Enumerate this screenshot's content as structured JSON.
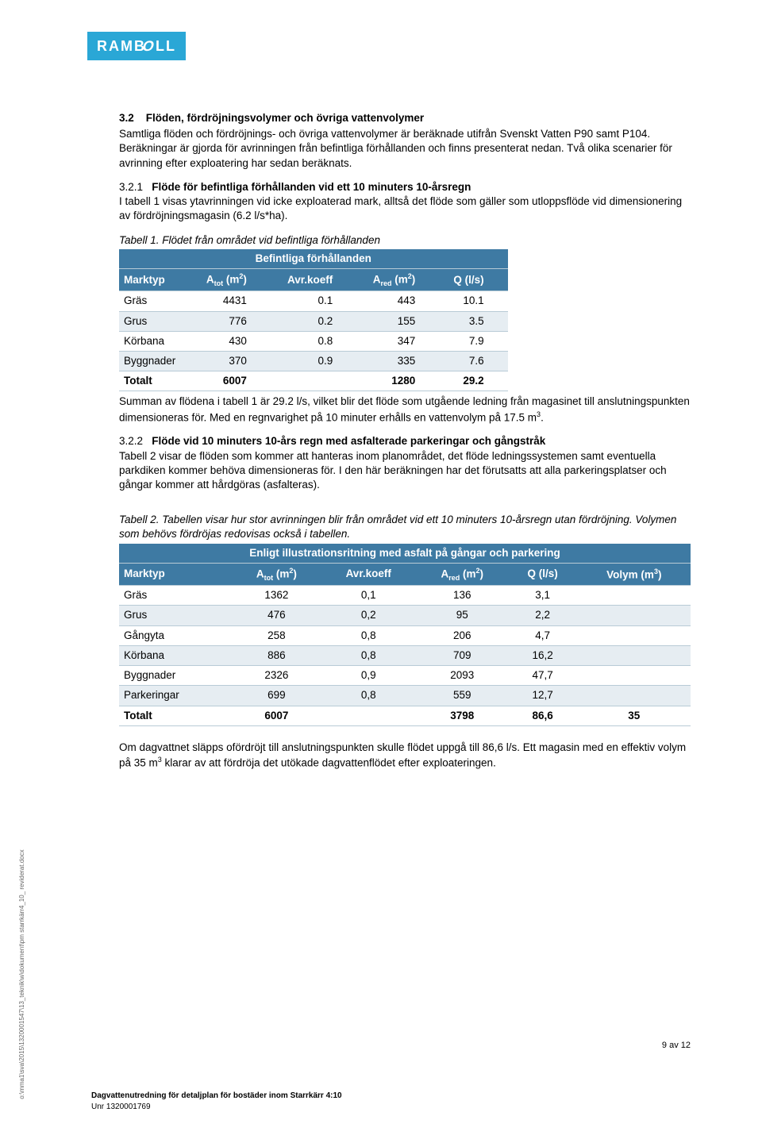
{
  "logo_text": "RAMBOLL",
  "section32": {
    "num": "3.2",
    "title": "Flöden, fördröjningsvolymer och övriga vattenvolymer",
    "para": "Samtliga flöden och fördröjnings- och övriga vattenvolymer är beräknade utifrån Svenskt Vatten P90 samt P104. Beräkningar är gjorda för avrinningen från befintliga förhållanden och finns presenterat nedan. Två olika scenarier för avrinning efter exploatering har sedan beräknats."
  },
  "section321": {
    "num": "3.2.1",
    "title": "Flöde för befintliga förhållanden vid ett 10 minuters 10-årsregn",
    "para": "I tabell 1 visas ytavrinningen vid icke exploaterad mark, alltså det flöde som gäller som utloppsflöde vid dimensionering av fördröjningsmagasin (6.2 l/s*ha)."
  },
  "table1": {
    "caption": "Tabell 1. Flödet från området vid befintliga förhållanden",
    "banner": "Befintliga förhållanden",
    "columns": {
      "c0": "Marktyp",
      "c1_pre": "A",
      "c1_sub": "tot",
      "c1_unit_pre": " (m",
      "c1_sup": "2",
      "c1_unit_post": ")",
      "c2": "Avr.koeff",
      "c3_pre": "A",
      "c3_sub": "red",
      "c3_unit_pre": " (m",
      "c3_sup": "2",
      "c3_unit_post": ")",
      "c4": "Q (l/s)"
    },
    "rows": [
      {
        "name": "Gräs",
        "atot": "4431",
        "koeff": "0.1",
        "ared": "443",
        "q": "10.1",
        "alt": false
      },
      {
        "name": "Grus",
        "atot": "776",
        "koeff": "0.2",
        "ared": "155",
        "q": "3.5",
        "alt": true
      },
      {
        "name": "Körbana",
        "atot": "430",
        "koeff": "0.8",
        "ared": "347",
        "q": "7.9",
        "alt": false
      },
      {
        "name": "Byggnader",
        "atot": "370",
        "koeff": "0.9",
        "ared": "335",
        "q": "7.6",
        "alt": true
      }
    ],
    "total": {
      "name": "Totalt",
      "atot": "6007",
      "koeff": "",
      "ared": "1280",
      "q": "29.2"
    }
  },
  "summary_after_t1": "Summan av flödena i tabell 1 är 29.2 l/s, vilket blir det flöde som utgående ledning från magasinet till anslutningspunkten dimensioneras för. Med en regnvarighet på 10 minuter erhålls en vattenvolym på 17.5 m",
  "summary_after_t1_sup": "3",
  "summary_after_t1_end": ".",
  "section322": {
    "num": "3.2.2",
    "title": "Flöde vid 10 minuters 10-års regn med asfalterade parkeringar och gångstråk",
    "para": "Tabell 2 visar de flöden som kommer att hanteras inom planområdet, det flöde ledningssystemen samt eventuella parkdiken kommer behöva dimensioneras för. I den här beräkningen har det förutsatts att alla parkeringsplatser och gångar kommer att hårdgöras (asfalteras)."
  },
  "table2": {
    "caption": "Tabell 2. Tabellen visar hur stor avrinningen blir från området vid ett 10 minuters 10-årsregn utan fördröjning. Volymen som behövs fördröjas redovisas också i tabellen.",
    "banner": "Enligt illustrationsritning med asfalt på gångar och parkering",
    "columns": {
      "c0": "Marktyp",
      "c1_pre": "A",
      "c1_sub": "tot",
      "c1_unit_pre": " (m",
      "c1_sup": "2",
      "c1_unit_post": ")",
      "c2": "Avr.koeff",
      "c3_pre": "A",
      "c3_sub": "red",
      "c3_unit_pre": " (m",
      "c3_sup": "2",
      "c3_unit_post": ")",
      "c4": "Q (l/s)",
      "c5_pre": "Volym (m",
      "c5_sup": "3",
      "c5_post": ")"
    },
    "rows": [
      {
        "name": "Gräs",
        "atot": "1362",
        "koeff": "0,1",
        "ared": "136",
        "q": "3,1",
        "vol": "",
        "alt": false
      },
      {
        "name": "Grus",
        "atot": "476",
        "koeff": "0,2",
        "ared": "95",
        "q": "2,2",
        "vol": "",
        "alt": true
      },
      {
        "name": "Gångyta",
        "atot": "258",
        "koeff": "0,8",
        "ared": "206",
        "q": "4,7",
        "vol": "",
        "alt": false
      },
      {
        "name": "Körbana",
        "atot": "886",
        "koeff": "0,8",
        "ared": "709",
        "q": "16,2",
        "vol": "",
        "alt": true
      },
      {
        "name": "Byggnader",
        "atot": "2326",
        "koeff": "0,9",
        "ared": "2093",
        "q": "47,7",
        "vol": "",
        "alt": false
      },
      {
        "name": "Parkeringar",
        "atot": "699",
        "koeff": "0,8",
        "ared": "559",
        "q": "12,7",
        "vol": "",
        "alt": true
      }
    ],
    "total": {
      "name": "Totalt",
      "atot": "6007",
      "koeff": "",
      "ared": "3798",
      "q": "86,6",
      "vol": "35"
    }
  },
  "closing_p1": "Om dagvattnet släpps ofördröjt till anslutningspunkten skulle flödet uppgå till 86,6 l/s. Ett magasin med en effektiv volym på 35 m",
  "closing_sup": "3",
  "closing_p2": " klarar av att fördröja det utökade dagvattenflödet efter exploateringen.",
  "page_num": "9 av 12",
  "footer_title": "Dagvattenutredning för detaljplan för bostäder inom Starrkärr 4:10",
  "footer_unr": "Unr 1320001769",
  "side_path": "o:\\mma1\\sva\\2015\\1320001547\\13_teknik\\w\\dokument\\pm starrkärr4_10_ reviderat.docx"
}
